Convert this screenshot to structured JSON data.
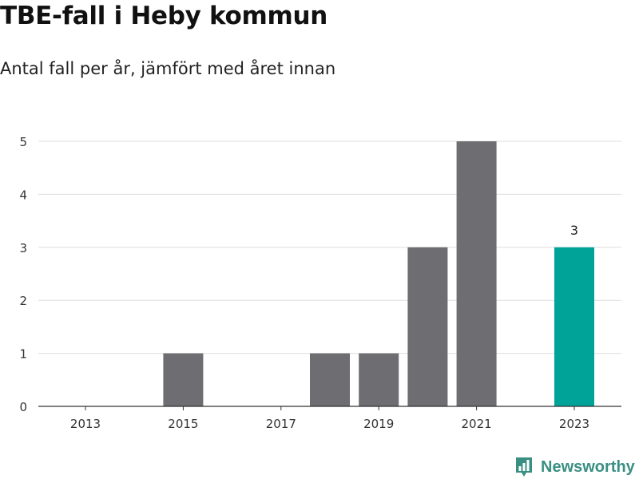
{
  "header": {
    "title": "TBE-fall i Heby kommun",
    "subtitle": "Antal fall per år, jämfört med året innan"
  },
  "brand": {
    "name": "Newsworthy",
    "icon": "bar-chart-pin-icon",
    "color": "#3a8f83"
  },
  "chart_data": {
    "type": "bar",
    "title": "TBE-fall i Heby kommun",
    "subtitle": "Antal fall per år, jämfört med året innan",
    "xlabel": "",
    "ylabel": "",
    "categories": [
      "2013",
      "2014",
      "2015",
      "2016",
      "2017",
      "2018",
      "2019",
      "2020",
      "2021",
      "2022",
      "2023"
    ],
    "values": [
      0,
      0,
      1,
      0,
      0,
      1,
      1,
      3,
      5,
      0,
      3
    ],
    "highlight_index": 10,
    "x_tick_labels": [
      "2013",
      "2015",
      "2017",
      "2019",
      "2021",
      "2023"
    ],
    "y_ticks": [
      "0",
      "1",
      "2",
      "3",
      "4",
      "5"
    ],
    "ylim": [
      0,
      5
    ],
    "grid": true,
    "legend": "none",
    "data_labels": [
      {
        "category": "2023",
        "text": "3"
      }
    ],
    "colors": {
      "bar": "#6d6d72",
      "highlight": "#00a398",
      "grid": "#dddddd",
      "axis": "#333333"
    }
  }
}
